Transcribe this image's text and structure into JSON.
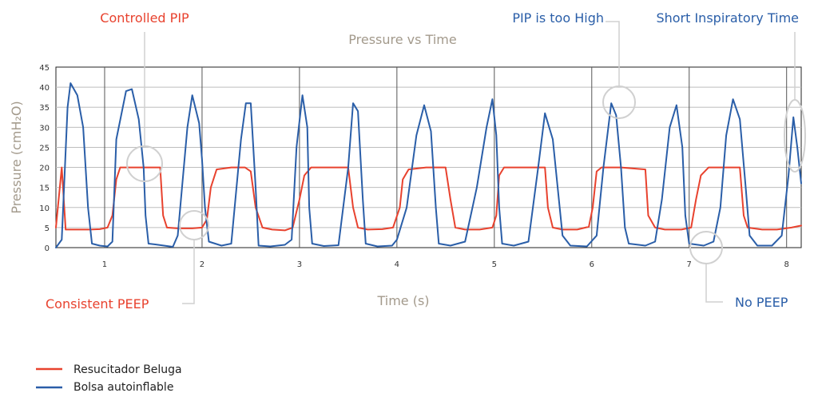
{
  "chart_data": {
    "type": "line",
    "title": "Pressure vs Time",
    "xlabel": "Time (s)",
    "ylabel": "Pressure (cmH₂O)",
    "xlim": [
      0.5,
      8.15
    ],
    "ylim": [
      0,
      45
    ],
    "xticks": [
      "1",
      "2",
      "3",
      "4",
      "5",
      "6",
      "7",
      "8"
    ],
    "yticks": [
      "0",
      "5",
      "10",
      "15",
      "20",
      "25",
      "30",
      "35",
      "40",
      "45"
    ],
    "grid": true,
    "legend_position": "bottom-left",
    "series": [
      {
        "name": "Resucitador Beluga",
        "color": "#e8422e",
        "points": [
          [
            0.5,
            5
          ],
          [
            0.56,
            20
          ],
          [
            0.6,
            4.5
          ],
          [
            0.72,
            4.5
          ],
          [
            0.85,
            4.5
          ],
          [
            0.95,
            4.6
          ],
          [
            1.03,
            5
          ],
          [
            1.08,
            8
          ],
          [
            1.12,
            17
          ],
          [
            1.16,
            20
          ],
          [
            1.3,
            20
          ],
          [
            1.45,
            20
          ],
          [
            1.57,
            20
          ],
          [
            1.6,
            8
          ],
          [
            1.64,
            5
          ],
          [
            1.75,
            4.8
          ],
          [
            1.9,
            4.8
          ],
          [
            2.0,
            5
          ],
          [
            2.05,
            7
          ],
          [
            2.09,
            15
          ],
          [
            2.15,
            19.5
          ],
          [
            2.3,
            20
          ],
          [
            2.44,
            20
          ],
          [
            2.5,
            19
          ],
          [
            2.55,
            10
          ],
          [
            2.62,
            5
          ],
          [
            2.72,
            4.5
          ],
          [
            2.85,
            4.3
          ],
          [
            2.93,
            5
          ],
          [
            3.0,
            12
          ],
          [
            3.05,
            18
          ],
          [
            3.12,
            20
          ],
          [
            3.3,
            20
          ],
          [
            3.5,
            20
          ],
          [
            3.55,
            10
          ],
          [
            3.6,
            5
          ],
          [
            3.7,
            4.5
          ],
          [
            3.85,
            4.6
          ],
          [
            3.96,
            5
          ],
          [
            4.03,
            10
          ],
          [
            4.06,
            17
          ],
          [
            4.12,
            19.5
          ],
          [
            4.3,
            20
          ],
          [
            4.5,
            20
          ],
          [
            4.55,
            12
          ],
          [
            4.6,
            5
          ],
          [
            4.7,
            4.5
          ],
          [
            4.85,
            4.5
          ],
          [
            4.98,
            5
          ],
          [
            5.02,
            8
          ],
          [
            5.05,
            18
          ],
          [
            5.1,
            20
          ],
          [
            5.3,
            20
          ],
          [
            5.52,
            20
          ],
          [
            5.55,
            10
          ],
          [
            5.6,
            5
          ],
          [
            5.7,
            4.5
          ],
          [
            5.85,
            4.5
          ],
          [
            5.97,
            5.2
          ],
          [
            6.01,
            10
          ],
          [
            6.05,
            19
          ],
          [
            6.1,
            20
          ],
          [
            6.3,
            20
          ],
          [
            6.55,
            19.5
          ],
          [
            6.58,
            8
          ],
          [
            6.65,
            5
          ],
          [
            6.75,
            4.5
          ],
          [
            6.92,
            4.5
          ],
          [
            7.02,
            5
          ],
          [
            7.07,
            12
          ],
          [
            7.12,
            18
          ],
          [
            7.2,
            20
          ],
          [
            7.35,
            20
          ],
          [
            7.52,
            20
          ],
          [
            7.56,
            8
          ],
          [
            7.6,
            5
          ],
          [
            7.75,
            4.5
          ],
          [
            7.9,
            4.5
          ],
          [
            8.05,
            5
          ],
          [
            8.15,
            5.5
          ]
        ]
      },
      {
        "name": "Bolsa autoinflable",
        "color": "#2a5ea8",
        "points": [
          [
            0.5,
            0
          ],
          [
            0.56,
            2
          ],
          [
            0.62,
            35
          ],
          [
            0.65,
            41
          ],
          [
            0.72,
            38
          ],
          [
            0.78,
            30
          ],
          [
            0.83,
            10
          ],
          [
            0.87,
            1
          ],
          [
            0.95,
            0.5
          ],
          [
            1.03,
            0.3
          ],
          [
            1.08,
            1.5
          ],
          [
            1.12,
            27
          ],
          [
            1.22,
            39
          ],
          [
            1.28,
            39.5
          ],
          [
            1.35,
            32
          ],
          [
            1.4,
            20
          ],
          [
            1.42,
            8
          ],
          [
            1.45,
            1
          ],
          [
            1.52,
            0.8
          ],
          [
            1.7,
            0.2
          ],
          [
            1.75,
            3
          ],
          [
            1.85,
            30
          ],
          [
            1.9,
            38
          ],
          [
            1.97,
            31
          ],
          [
            2.0,
            22
          ],
          [
            2.03,
            10
          ],
          [
            2.07,
            1.5
          ],
          [
            2.2,
            0.5
          ],
          [
            2.3,
            1
          ],
          [
            2.4,
            27
          ],
          [
            2.45,
            36
          ],
          [
            2.5,
            36
          ],
          [
            2.55,
            15
          ],
          [
            2.58,
            0.5
          ],
          [
            2.7,
            0.3
          ],
          [
            2.85,
            0.7
          ],
          [
            2.92,
            2
          ],
          [
            2.97,
            25
          ],
          [
            3.03,
            38
          ],
          [
            3.08,
            30
          ],
          [
            3.1,
            10
          ],
          [
            3.13,
            1
          ],
          [
            3.25,
            0.4
          ],
          [
            3.4,
            0.6
          ],
          [
            3.5,
            20
          ],
          [
            3.55,
            36
          ],
          [
            3.6,
            34
          ],
          [
            3.65,
            12
          ],
          [
            3.68,
            1
          ],
          [
            3.8,
            0.3
          ],
          [
            3.95,
            0.5
          ],
          [
            4.0,
            2
          ],
          [
            4.1,
            10
          ],
          [
            4.2,
            28
          ],
          [
            4.28,
            35.5
          ],
          [
            4.35,
            29
          ],
          [
            4.4,
            10
          ],
          [
            4.43,
            1
          ],
          [
            4.55,
            0.5
          ],
          [
            4.7,
            1.5
          ],
          [
            4.82,
            15
          ],
          [
            4.92,
            30
          ],
          [
            4.98,
            37
          ],
          [
            5.02,
            28
          ],
          [
            5.05,
            10
          ],
          [
            5.08,
            1
          ],
          [
            5.2,
            0.5
          ],
          [
            5.35,
            1.5
          ],
          [
            5.45,
            20
          ],
          [
            5.52,
            33.5
          ],
          [
            5.6,
            27
          ],
          [
            5.65,
            15
          ],
          [
            5.7,
            3
          ],
          [
            5.78,
            0.5
          ],
          [
            5.95,
            0.3
          ],
          [
            6.05,
            3
          ],
          [
            6.12,
            20
          ],
          [
            6.2,
            36
          ],
          [
            6.25,
            33
          ],
          [
            6.3,
            20
          ],
          [
            6.34,
            5
          ],
          [
            6.38,
            1
          ],
          [
            6.55,
            0.5
          ],
          [
            6.65,
            1.5
          ],
          [
            6.72,
            12
          ],
          [
            6.8,
            30
          ],
          [
            6.87,
            35.5
          ],
          [
            6.93,
            25
          ],
          [
            6.96,
            8
          ],
          [
            7.0,
            1
          ],
          [
            7.15,
            0.5
          ],
          [
            7.25,
            1.5
          ],
          [
            7.32,
            10
          ],
          [
            7.38,
            28
          ],
          [
            7.45,
            37
          ],
          [
            7.52,
            32
          ],
          [
            7.58,
            15
          ],
          [
            7.62,
            3
          ],
          [
            7.7,
            0.5
          ],
          [
            7.85,
            0.5
          ],
          [
            7.95,
            3
          ],
          [
            8.02,
            18
          ],
          [
            8.07,
            32.5
          ],
          [
            8.11,
            25
          ],
          [
            8.15,
            16
          ]
        ]
      }
    ],
    "annotations": [
      {
        "text": "Controlled PIP",
        "color": "#e8422e"
      },
      {
        "text": "Consistent PEEP",
        "color": "#e8422e"
      },
      {
        "text": "PIP is too High",
        "color": "#2a5ea8"
      },
      {
        "text": "Short Inspiratory Time",
        "color": "#2a5ea8"
      },
      {
        "text": "No PEEP",
        "color": "#2a5ea8"
      }
    ]
  }
}
